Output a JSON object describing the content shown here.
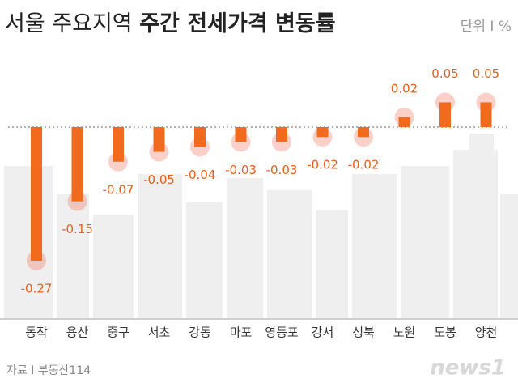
{
  "chart_data": {
    "type": "bar",
    "title_parts": [
      "서울 주요지역",
      "주간 전세가격 변동률"
    ],
    "unit": "단위 I %",
    "source": "자료 I 부동산114",
    "logo": "news1",
    "categories": [
      "동작",
      "용산",
      "중구",
      "서초",
      "강동",
      "마포",
      "영등포",
      "강서",
      "성북",
      "노원",
      "도봉",
      "양천"
    ],
    "values": [
      -0.27,
      -0.15,
      -0.07,
      -0.05,
      -0.04,
      -0.03,
      -0.03,
      -0.02,
      -0.02,
      0.02,
      0.05,
      0.05
    ],
    "color": "#f26a1b"
  }
}
